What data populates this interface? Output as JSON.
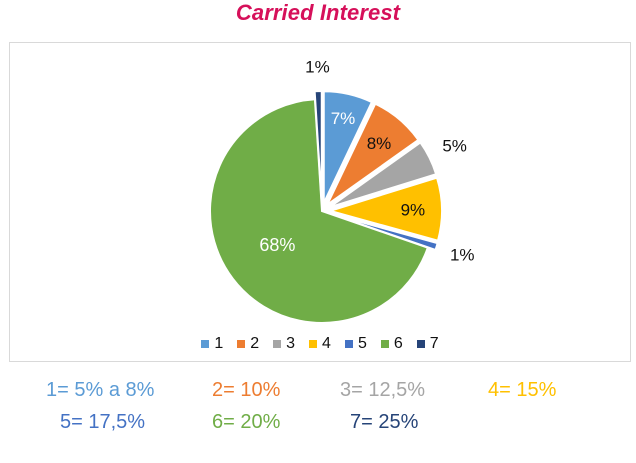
{
  "title": "Carried Interest",
  "colors": {
    "title": "#d6105a",
    "slice_1": "#5b9bd5",
    "slice_2": "#ed7d31",
    "slice_3": "#a5a5a5",
    "slice_4": "#ffc000",
    "slice_5": "#4472c4",
    "slice_6": "#70ad47",
    "slice_7": "#264478"
  },
  "chart_data": {
    "type": "pie",
    "title": "Carried Interest",
    "categories": [
      "1",
      "2",
      "3",
      "4",
      "5",
      "6",
      "7"
    ],
    "values": [
      7,
      8,
      5,
      9,
      1,
      68,
      1
    ],
    "data_labels": [
      "7%",
      "8%",
      "5%",
      "9%",
      "1%",
      "68%",
      "1%"
    ],
    "legend_position": "bottom",
    "exploded": true
  },
  "legend": {
    "items": [
      "1",
      "2",
      "3",
      "4",
      "5",
      "6",
      "7"
    ]
  },
  "notes": [
    {
      "text": "1= 5% a 8%",
      "color": "#5b9bd5"
    },
    {
      "text": "2= 10%",
      "color": "#ed7d31"
    },
    {
      "text": "3= 12,5%",
      "color": "#a5a5a5"
    },
    {
      "text": "4= 15%",
      "color": "#ffc000"
    },
    {
      "text": "5= 17,5%",
      "color": "#4472c4"
    },
    {
      "text": "6= 20%",
      "color": "#70ad47"
    },
    {
      "text": "7= 25%",
      "color": "#264478"
    }
  ]
}
